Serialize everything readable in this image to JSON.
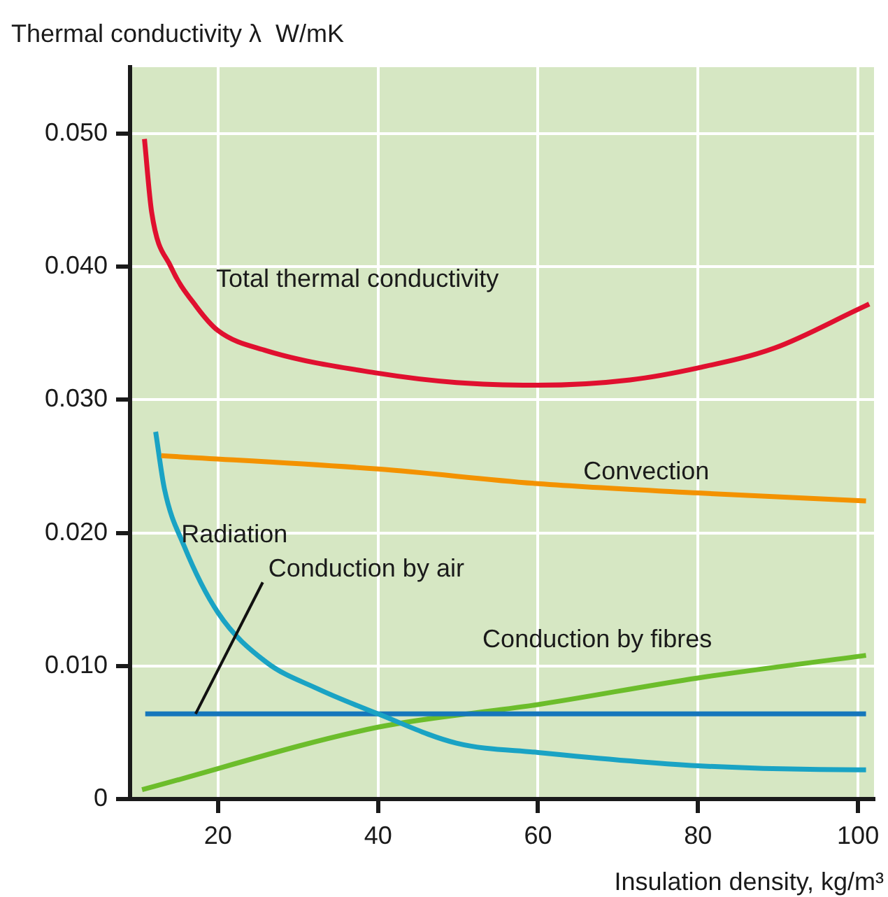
{
  "chart_data": {
    "type": "line",
    "ylabel": "Thermal conductivity λ  W/mK",
    "xlabel": "Insulation density, kg/m³",
    "xlim": [
      9,
      102
    ],
    "xticks": [
      20,
      40,
      60,
      80,
      100
    ],
    "ylim": [
      0,
      0.055
    ],
    "yticks": [
      0,
      {
        "value": 0.01,
        "label": "0.010"
      },
      {
        "value": 0.02,
        "label": "0.020"
      },
      {
        "value": 0.03,
        "label": "0.030"
      },
      {
        "value": 0.04,
        "label": "0.040"
      },
      {
        "value": 0.05,
        "label": "0.050"
      }
    ],
    "grid": true,
    "legend": false,
    "marker": "none",
    "line_style": "solid",
    "series": [
      {
        "name": "Total thermal conductivity",
        "color": "#e0102f",
        "x": [
          10.8,
          11.7,
          14.1,
          17.3,
          20,
          26,
          40,
          49.8,
          60,
          71.5,
          80,
          89.6,
          100,
          101.4
        ],
        "values": [
          0.0496,
          0.0441,
          0.04,
          0.037,
          0.0352,
          0.0337,
          0.032,
          0.0313,
          0.0311,
          0.0315,
          0.0324,
          0.0339,
          0.0368,
          0.0372
        ]
      },
      {
        "name": "Convection",
        "color": "#f39200",
        "x": [
          12.9,
          40,
          60,
          80,
          101
        ],
        "values": [
          0.0258,
          0.0248,
          0.0237,
          0.023,
          0.0224
        ]
      },
      {
        "name": "Radiation",
        "color": "#1aa3c4",
        "x": [
          12.2,
          13.3,
          15.7,
          20,
          26,
          32.4,
          40,
          49.8,
          60,
          80,
          100,
          101
        ],
        "values": [
          0.0276,
          0.0233,
          0.0191,
          0.014,
          0.0103,
          0.0083,
          0.0064,
          0.0042,
          0.0035,
          0.0025,
          0.0022,
          0.0022
        ]
      },
      {
        "name": "Conduction by air",
        "color": "#1677bb",
        "x": [
          10.9,
          101
        ],
        "values": [
          0.0064,
          0.0064
        ]
      },
      {
        "name": "Conduction by fibres",
        "color": "#6cbd2b",
        "x": [
          10.5,
          40,
          60,
          80,
          101
        ],
        "values": [
          0.0007,
          0.0054,
          0.0071,
          0.0091,
          0.0108
        ]
      }
    ]
  }
}
